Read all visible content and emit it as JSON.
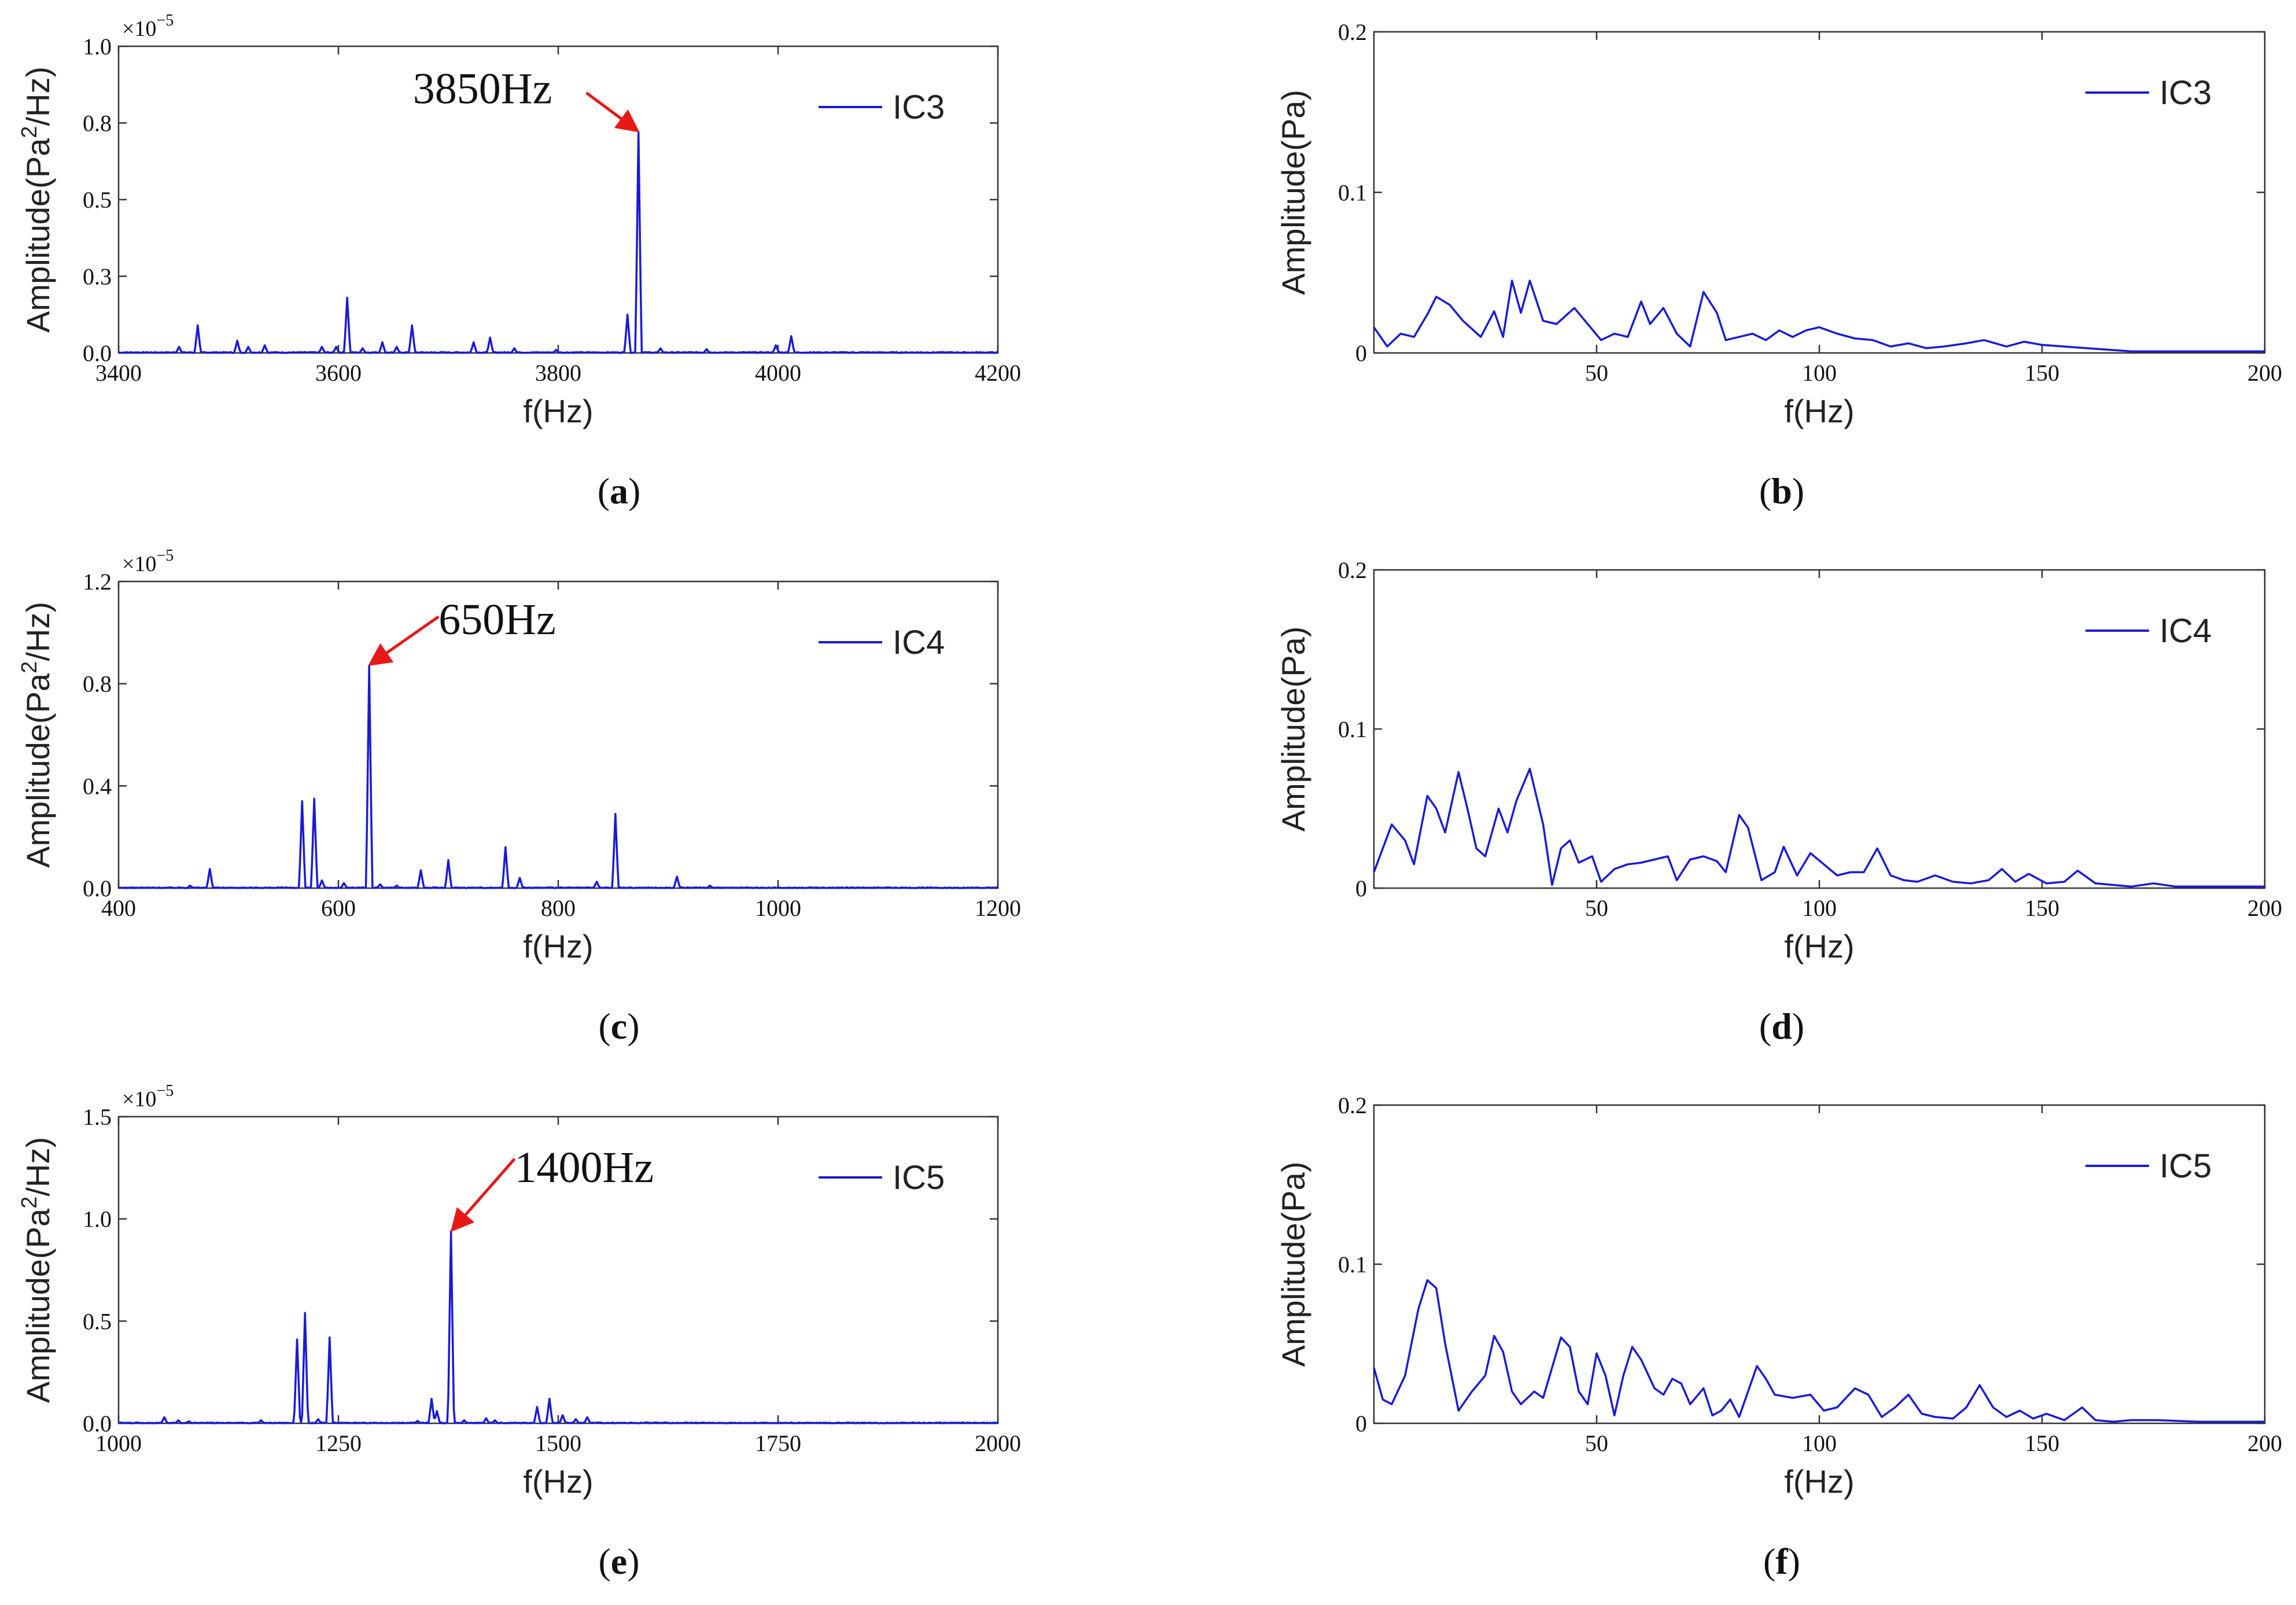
{
  "colors": {
    "line": "#1a1ad6",
    "arrow": "#e81818",
    "axis": "#333333"
  },
  "chart_data": [
    {
      "panel": "(a)",
      "panel_letter": "a",
      "panel_prefix": "(",
      "panel_suffix": ")",
      "type": "line",
      "series_name": "IC3",
      "xlabel": "f(Hz)",
      "ylabel": "Amplitude(Pa²/Hz)",
      "ylabel_parts": [
        "Amplitude(Pa",
        "2",
        "/Hz)"
      ],
      "scale_note_base": "×10",
      "scale_note_exp": "−5",
      "xlim": [
        3400,
        4200
      ],
      "ylim": [
        0,
        1.0
      ],
      "xticks": [
        3400,
        3600,
        3800,
        4000,
        4200
      ],
      "xtick_labels": [
        "3400",
        "3600",
        "3800",
        "4000",
        "4200"
      ],
      "yticks": [
        0,
        0.25,
        0.5,
        0.75,
        1.0
      ],
      "ytick_labels": [
        "0.0",
        "0.3",
        "0.5",
        "0.8",
        "1.0"
      ],
      "peaks": [
        [
          3455,
          0.02
        ],
        [
          3472,
          0.09
        ],
        [
          3508,
          0.04
        ],
        [
          3518,
          0.02
        ],
        [
          3533,
          0.025
        ],
        [
          3585,
          0.02
        ],
        [
          3598,
          0.02
        ],
        [
          3608,
          0.18
        ],
        [
          3622,
          0.015
        ],
        [
          3640,
          0.035
        ],
        [
          3653,
          0.02
        ],
        [
          3667,
          0.09
        ],
        [
          3723,
          0.035
        ],
        [
          3738,
          0.05
        ],
        [
          3760,
          0.015
        ],
        [
          3798,
          0.01
        ],
        [
          3863,
          0.125
        ],
        [
          3873,
          0.72
        ],
        [
          3893,
          0.015
        ],
        [
          3935,
          0.012
        ],
        [
          3998,
          0.025
        ],
        [
          4012,
          0.055
        ]
      ],
      "noise": 0.003,
      "annotation": {
        "text": "3850Hz",
        "x": 3873,
        "y": 0.72
      },
      "curve_points": []
    },
    {
      "panel": "(b)",
      "panel_letter": "b",
      "panel_prefix": "(",
      "panel_suffix": ")",
      "type": "line",
      "series_name": "IC3",
      "xlabel": "f(Hz)",
      "ylabel": "Amplitude(Pa)",
      "ylabel_parts": [
        "Amplitude(Pa)"
      ],
      "scale_note_base": "",
      "scale_note_exp": "",
      "xlim": [
        0,
        200
      ],
      "ylim": [
        0,
        0.2
      ],
      "xticks": [
        50,
        100,
        150,
        200
      ],
      "xtick_labels": [
        "50",
        "100",
        "150",
        "200"
      ],
      "yticks": [
        0,
        0.1,
        0.2
      ],
      "ytick_labels": [
        "0",
        "0.1",
        "0.2"
      ],
      "peaks": [],
      "noise": 0,
      "annotation": null,
      "curve_points": [
        [
          0,
          0.016
        ],
        [
          3,
          0.004
        ],
        [
          6,
          0.012
        ],
        [
          9,
          0.01
        ],
        [
          12,
          0.024
        ],
        [
          14,
          0.035
        ],
        [
          17,
          0.03
        ],
        [
          20,
          0.02
        ],
        [
          24,
          0.01
        ],
        [
          27,
          0.026
        ],
        [
          29,
          0.01
        ],
        [
          31,
          0.045
        ],
        [
          33,
          0.025
        ],
        [
          35,
          0.045
        ],
        [
          38,
          0.02
        ],
        [
          41,
          0.018
        ],
        [
          45,
          0.028
        ],
        [
          48,
          0.018
        ],
        [
          51,
          0.008
        ],
        [
          54,
          0.012
        ],
        [
          57,
          0.01
        ],
        [
          60,
          0.032
        ],
        [
          62,
          0.018
        ],
        [
          65,
          0.028
        ],
        [
          68,
          0.012
        ],
        [
          71,
          0.004
        ],
        [
          74,
          0.038
        ],
        [
          77,
          0.025
        ],
        [
          79,
          0.008
        ],
        [
          82,
          0.01
        ],
        [
          85,
          0.012
        ],
        [
          88,
          0.008
        ],
        [
          91,
          0.014
        ],
        [
          94,
          0.01
        ],
        [
          97,
          0.014
        ],
        [
          100,
          0.016
        ],
        [
          104,
          0.012
        ],
        [
          108,
          0.009
        ],
        [
          112,
          0.008
        ],
        [
          116,
          0.004
        ],
        [
          120,
          0.006
        ],
        [
          124,
          0.003
        ],
        [
          128,
          0.004
        ],
        [
          133,
          0.006
        ],
        [
          137,
          0.008
        ],
        [
          142,
          0.004
        ],
        [
          146,
          0.007
        ],
        [
          150,
          0.005
        ],
        [
          155,
          0.004
        ],
        [
          160,
          0.003
        ],
        [
          165,
          0.002
        ],
        [
          170,
          0.001
        ],
        [
          180,
          0.001
        ],
        [
          200,
          0.001
        ]
      ]
    },
    {
      "panel": "(c)",
      "panel_letter": "c",
      "panel_prefix": "(",
      "panel_suffix": ")",
      "type": "line",
      "series_name": "IC4",
      "xlabel": "f(Hz)",
      "ylabel": "Amplitude(Pa²/Hz)",
      "ylabel_parts": [
        "Amplitude(Pa",
        "2",
        "/Hz)"
      ],
      "scale_note_base": "×10",
      "scale_note_exp": "−5",
      "xlim": [
        400,
        1200
      ],
      "ylim": [
        0,
        1.2
      ],
      "xticks": [
        400,
        600,
        800,
        1000,
        1200
      ],
      "xtick_labels": [
        "400",
        "600",
        "800",
        "1000",
        "1200"
      ],
      "yticks": [
        0,
        0.4,
        0.8,
        1.2
      ],
      "ytick_labels": [
        "0.0",
        "0.4",
        "0.8",
        "1.2"
      ],
      "peaks": [
        [
          465,
          0.01
        ],
        [
          483,
          0.075
        ],
        [
          567,
          0.34
        ],
        [
          578,
          0.35
        ],
        [
          585,
          0.03
        ],
        [
          605,
          0.02
        ],
        [
          628,
          0.87
        ],
        [
          638,
          0.015
        ],
        [
          653,
          0.01
        ],
        [
          675,
          0.07
        ],
        [
          700,
          0.11
        ],
        [
          752,
          0.16
        ],
        [
          765,
          0.04
        ],
        [
          835,
          0.025
        ],
        [
          852,
          0.29
        ],
        [
          908,
          0.045
        ],
        [
          938,
          0.01
        ]
      ],
      "noise": 0.003,
      "annotation": {
        "text": "650Hz",
        "x": 628,
        "y": 0.87
      },
      "curve_points": []
    },
    {
      "panel": "(d)",
      "panel_letter": "d",
      "panel_prefix": "(",
      "panel_suffix": ")",
      "type": "line",
      "series_name": "IC4",
      "xlabel": "f(Hz)",
      "ylabel": "Amplitude(Pa)",
      "ylabel_parts": [
        "Amplitude(Pa)"
      ],
      "scale_note_base": "",
      "scale_note_exp": "",
      "xlim": [
        0,
        200
      ],
      "ylim": [
        0,
        0.2
      ],
      "xticks": [
        50,
        100,
        150,
        200
      ],
      "xtick_labels": [
        "50",
        "100",
        "150",
        "200"
      ],
      "yticks": [
        0,
        0.1,
        0.2
      ],
      "ytick_labels": [
        "0",
        "0.1",
        "0.2"
      ],
      "peaks": [],
      "noise": 0,
      "annotation": null,
      "curve_points": [
        [
          0,
          0.01
        ],
        [
          4,
          0.04
        ],
        [
          7,
          0.03
        ],
        [
          9,
          0.015
        ],
        [
          12,
          0.058
        ],
        [
          14,
          0.05
        ],
        [
          16,
          0.035
        ],
        [
          19,
          0.073
        ],
        [
          21,
          0.05
        ],
        [
          23,
          0.025
        ],
        [
          25,
          0.02
        ],
        [
          28,
          0.05
        ],
        [
          30,
          0.035
        ],
        [
          32,
          0.055
        ],
        [
          35,
          0.075
        ],
        [
          38,
          0.04
        ],
        [
          40,
          0.002
        ],
        [
          42,
          0.025
        ],
        [
          44,
          0.03
        ],
        [
          46,
          0.016
        ],
        [
          49,
          0.02
        ],
        [
          51,
          0.004
        ],
        [
          54,
          0.012
        ],
        [
          57,
          0.015
        ],
        [
          60,
          0.016
        ],
        [
          63,
          0.018
        ],
        [
          66,
          0.02
        ],
        [
          68,
          0.005
        ],
        [
          71,
          0.018
        ],
        [
          74,
          0.02
        ],
        [
          77,
          0.017
        ],
        [
          79,
          0.01
        ],
        [
          82,
          0.046
        ],
        [
          84,
          0.038
        ],
        [
          87,
          0.005
        ],
        [
          90,
          0.01
        ],
        [
          92,
          0.026
        ],
        [
          95,
          0.008
        ],
        [
          98,
          0.022
        ],
        [
          101,
          0.015
        ],
        [
          104,
          0.008
        ],
        [
          107,
          0.01
        ],
        [
          110,
          0.01
        ],
        [
          113,
          0.025
        ],
        [
          116,
          0.008
        ],
        [
          119,
          0.005
        ],
        [
          122,
          0.004
        ],
        [
          126,
          0.008
        ],
        [
          130,
          0.004
        ],
        [
          134,
          0.003
        ],
        [
          138,
          0.005
        ],
        [
          141,
          0.012
        ],
        [
          144,
          0.004
        ],
        [
          147,
          0.009
        ],
        [
          151,
          0.003
        ],
        [
          155,
          0.004
        ],
        [
          158,
          0.011
        ],
        [
          162,
          0.003
        ],
        [
          166,
          0.002
        ],
        [
          170,
          0.001
        ],
        [
          175,
          0.003
        ],
        [
          180,
          0.001
        ],
        [
          200,
          0.001
        ]
      ]
    },
    {
      "panel": "(e)",
      "panel_letter": "e",
      "panel_prefix": "(",
      "panel_suffix": ")",
      "type": "line",
      "series_name": "IC5",
      "xlabel": "f(Hz)",
      "ylabel": "Amplitude(Pa²/Hz)",
      "ylabel_parts": [
        "Amplitude(Pa",
        "2",
        "/Hz)"
      ],
      "scale_note_base": "×10",
      "scale_note_exp": "−5",
      "xlim": [
        1000,
        2000
      ],
      "ylim": [
        0,
        1.5
      ],
      "xticks": [
        1000,
        1250,
        1500,
        1750,
        2000
      ],
      "xtick_labels": [
        "1000",
        "1250",
        "1500",
        "1750",
        "2000"
      ],
      "yticks": [
        0,
        0.5,
        1.0,
        1.5
      ],
      "ytick_labels": [
        "0.0",
        "0.5",
        "1.0",
        "1.5"
      ],
      "peaks": [
        [
          1052,
          0.03
        ],
        [
          1068,
          0.015
        ],
        [
          1080,
          0.01
        ],
        [
          1162,
          0.015
        ],
        [
          1203,
          0.41
        ],
        [
          1212,
          0.54
        ],
        [
          1227,
          0.02
        ],
        [
          1240,
          0.42
        ],
        [
          1340,
          0.012
        ],
        [
          1356,
          0.12
        ],
        [
          1362,
          0.06
        ],
        [
          1378,
          0.94
        ],
        [
          1393,
          0.015
        ],
        [
          1418,
          0.025
        ],
        [
          1428,
          0.015
        ],
        [
          1476,
          0.08
        ],
        [
          1490,
          0.12
        ],
        [
          1505,
          0.04
        ],
        [
          1520,
          0.02
        ],
        [
          1533,
          0.03
        ],
        [
          1600,
          0.005
        ]
      ],
      "noise": 0.004,
      "annotation": {
        "text": "1400Hz",
        "x": 1378,
        "y": 0.94
      },
      "curve_points": []
    },
    {
      "panel": "(f)",
      "panel_letter": "f",
      "panel_prefix": "(",
      "panel_suffix": ")",
      "type": "line",
      "series_name": "IC5",
      "xlabel": "f(Hz)",
      "ylabel": "Amplitude(Pa)",
      "ylabel_parts": [
        "Amplitude(Pa)"
      ],
      "scale_note_base": "",
      "scale_note_exp": "",
      "xlim": [
        0,
        200
      ],
      "ylim": [
        0,
        0.2
      ],
      "xticks": [
        50,
        100,
        150,
        200
      ],
      "xtick_labels": [
        "50",
        "100",
        "150",
        "200"
      ],
      "yticks": [
        0,
        0.1,
        0.2
      ],
      "ytick_labels": [
        "0",
        "0.1",
        "0.2"
      ],
      "peaks": [],
      "noise": 0,
      "annotation": null,
      "curve_points": [
        [
          0,
          0.035
        ],
        [
          2,
          0.015
        ],
        [
          4,
          0.012
        ],
        [
          7,
          0.03
        ],
        [
          10,
          0.072
        ],
        [
          12,
          0.09
        ],
        [
          14,
          0.085
        ],
        [
          16,
          0.05
        ],
        [
          19,
          0.008
        ],
        [
          22,
          0.02
        ],
        [
          25,
          0.03
        ],
        [
          27,
          0.055
        ],
        [
          29,
          0.045
        ],
        [
          31,
          0.02
        ],
        [
          33,
          0.012
        ],
        [
          36,
          0.02
        ],
        [
          38,
          0.016
        ],
        [
          42,
          0.054
        ],
        [
          44,
          0.048
        ],
        [
          46,
          0.02
        ],
        [
          48,
          0.012
        ],
        [
          50,
          0.044
        ],
        [
          52,
          0.03
        ],
        [
          54,
          0.005
        ],
        [
          56,
          0.03
        ],
        [
          58,
          0.048
        ],
        [
          60,
          0.04
        ],
        [
          63,
          0.022
        ],
        [
          65,
          0.018
        ],
        [
          67,
          0.028
        ],
        [
          69,
          0.025
        ],
        [
          71,
          0.012
        ],
        [
          74,
          0.022
        ],
        [
          76,
          0.005
        ],
        [
          78,
          0.008
        ],
        [
          80,
          0.015
        ],
        [
          82,
          0.004
        ],
        [
          84,
          0.02
        ],
        [
          86,
          0.036
        ],
        [
          88,
          0.028
        ],
        [
          90,
          0.018
        ],
        [
          94,
          0.016
        ],
        [
          98,
          0.018
        ],
        [
          101,
          0.008
        ],
        [
          104,
          0.01
        ],
        [
          108,
          0.022
        ],
        [
          111,
          0.018
        ],
        [
          114,
          0.004
        ],
        [
          117,
          0.01
        ],
        [
          120,
          0.018
        ],
        [
          123,
          0.006
        ],
        [
          126,
          0.004
        ],
        [
          130,
          0.003
        ],
        [
          133,
          0.01
        ],
        [
          136,
          0.024
        ],
        [
          139,
          0.01
        ],
        [
          142,
          0.004
        ],
        [
          145,
          0.008
        ],
        [
          148,
          0.003
        ],
        [
          151,
          0.006
        ],
        [
          155,
          0.002
        ],
        [
          159,
          0.01
        ],
        [
          162,
          0.002
        ],
        [
          166,
          0.001
        ],
        [
          170,
          0.002
        ],
        [
          176,
          0.002
        ],
        [
          185,
          0.001
        ],
        [
          200,
          0.001
        ]
      ]
    }
  ]
}
